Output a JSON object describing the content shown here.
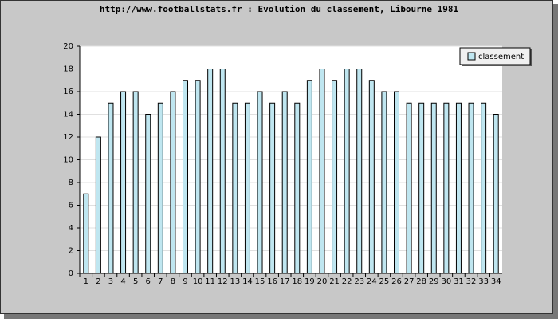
{
  "chart_data": {
    "type": "bar",
    "title": "http://www.footballstats.fr : Evolution du classement, Libourne 1981",
    "categories": [
      "1",
      "2",
      "3",
      "4",
      "5",
      "6",
      "7",
      "8",
      "9",
      "10",
      "11",
      "12",
      "13",
      "14",
      "15",
      "16",
      "17",
      "18",
      "19",
      "20",
      "21",
      "22",
      "23",
      "24",
      "25",
      "26",
      "27",
      "28",
      "29",
      "30",
      "31",
      "32",
      "33",
      "34"
    ],
    "series": [
      {
        "name": "classement",
        "color": "#bfe6f0",
        "values": [
          7,
          12,
          15,
          16,
          16,
          14,
          15,
          16,
          17,
          17,
          18,
          18,
          15,
          15,
          16,
          15,
          16,
          15,
          17,
          18,
          17,
          18,
          18,
          17,
          16,
          16,
          15,
          15,
          15,
          15,
          15,
          15,
          15,
          14
        ]
      }
    ],
    "ylim": [
      0,
      20
    ],
    "yticks": [
      0,
      2,
      4,
      6,
      8,
      10,
      12,
      14,
      16,
      18,
      20
    ],
    "grid": true,
    "legend": "top-right"
  }
}
